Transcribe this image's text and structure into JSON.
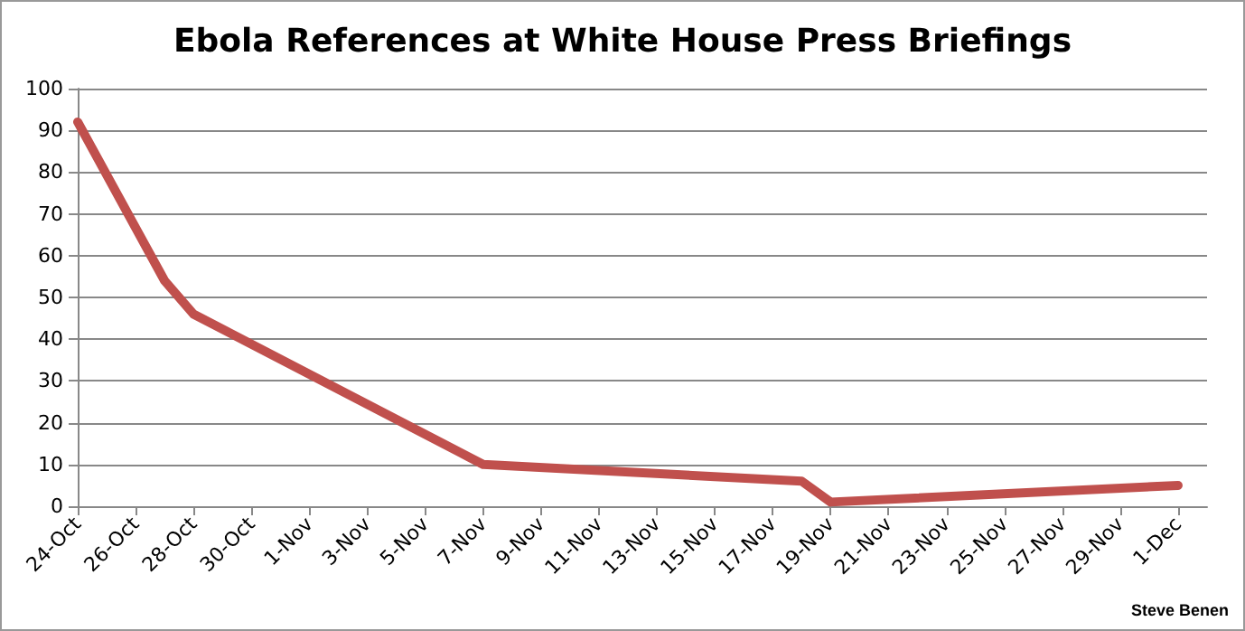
{
  "chart_data": {
    "type": "line",
    "title": "Ebola References at White House Press Briefings",
    "x": [
      "--10-24",
      "--10-27",
      "--10-28",
      "--11-07",
      "--11-18",
      "--11-19",
      "--12-01"
    ],
    "series": [
      {
        "color": "#c0504d",
        "values": [
          92,
          54,
          46,
          10,
          6,
          1,
          5
        ]
      }
    ],
    "xlim": [
      "--10-24",
      "--12-02"
    ],
    "xticks": [
      {
        "value": "--10-24",
        "label": "24-Oct"
      },
      {
        "value": "--10-26",
        "label": "26-Oct"
      },
      {
        "value": "--10-28",
        "label": "28-Oct"
      },
      {
        "value": "--10-30",
        "label": "30-Oct"
      },
      {
        "value": "--11-01",
        "label": "1-Nov"
      },
      {
        "value": "--11-03",
        "label": "3-Nov"
      },
      {
        "value": "--11-05",
        "label": "5-Nov"
      },
      {
        "value": "--11-07",
        "label": "7-Nov"
      },
      {
        "value": "--11-09",
        "label": "9-Nov"
      },
      {
        "value": "--11-11",
        "label": "11-Nov"
      },
      {
        "value": "--11-13",
        "label": "13-Nov"
      },
      {
        "value": "--11-15",
        "label": "15-Nov"
      },
      {
        "value": "--11-17",
        "label": "17-Nov"
      },
      {
        "value": "--11-19",
        "label": "19-Nov"
      },
      {
        "value": "--11-21",
        "label": "21-Nov"
      },
      {
        "value": "--11-23",
        "label": "23-Nov"
      },
      {
        "value": "--11-25",
        "label": "25-Nov"
      },
      {
        "value": "--11-27",
        "label": "27-Nov"
      },
      {
        "value": "--11-29",
        "label": "29-Nov"
      },
      {
        "value": "--12-01",
        "label": "1-Dec"
      }
    ],
    "ylim": [
      0,
      100
    ],
    "yticks": [
      0,
      10,
      20,
      30,
      40,
      50,
      60,
      70,
      80,
      90,
      100
    ],
    "grid": "y",
    "marker": "none",
    "line_style": "solid",
    "annotations": [
      "Steve Benen"
    ]
  }
}
